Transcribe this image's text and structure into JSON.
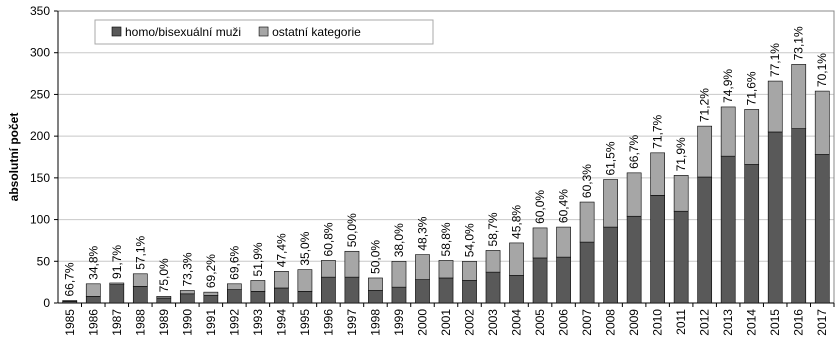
{
  "chart_data": {
    "type": "stacked-bar",
    "y_label": "absolutní počet",
    "categories": [
      "1985",
      "1986",
      "1987",
      "1988",
      "1989",
      "1990",
      "1991",
      "1992",
      "1993",
      "1994",
      "1995",
      "1996",
      "1997",
      "1998",
      "1999",
      "2000",
      "2001",
      "2002",
      "2003",
      "2004",
      "2005",
      "2006",
      "2007",
      "2008",
      "2009",
      "2010",
      "2011",
      "2012",
      "2013",
      "2014",
      "2015",
      "2016",
      "2017"
    ],
    "series": [
      {
        "name": "homo/bisexuální muži",
        "color": "#595959",
        "values": [
          2,
          8,
          22,
          20,
          6,
          11,
          9,
          16,
          14,
          18,
          14,
          31,
          31,
          15,
          19,
          28,
          30,
          27,
          37,
          33,
          54,
          55,
          73,
          91,
          104,
          129,
          110,
          151,
          176,
          166,
          205,
          209,
          178
        ]
      },
      {
        "name": "ostatní kategorie",
        "color": "#a6a6a6",
        "values": [
          1,
          15,
          2,
          15,
          2,
          4,
          4,
          7,
          13,
          20,
          26,
          20,
          31,
          15,
          31,
          30,
          21,
          23,
          26,
          39,
          36,
          36,
          48,
          57,
          52,
          51,
          43,
          61,
          59,
          66,
          61,
          77,
          76
        ]
      }
    ],
    "share_labels": [
      "66,7%",
      "34,8%",
      "91,7%",
      "57,1%",
      "75,0%",
      "73,3%",
      "69,2%",
      "69,6%",
      "51,9%",
      "47,4%",
      "35,0%",
      "60,8%",
      "50,0%",
      "50,0%",
      "38,0%",
      "48,3%",
      "58,8%",
      "54,0%",
      "58,7%",
      "45,8%",
      "60,0%",
      "60,4%",
      "60,3%",
      "61,5%",
      "66,7%",
      "71,7%",
      "71,9%",
      "71,2%",
      "74,9%",
      "71,6%",
      "77,1%",
      "73,1%",
      "70,1%"
    ],
    "ylim": [
      0,
      350
    ],
    "yticks": [
      0,
      50,
      100,
      150,
      200,
      250,
      300,
      350
    ],
    "grid": true
  }
}
